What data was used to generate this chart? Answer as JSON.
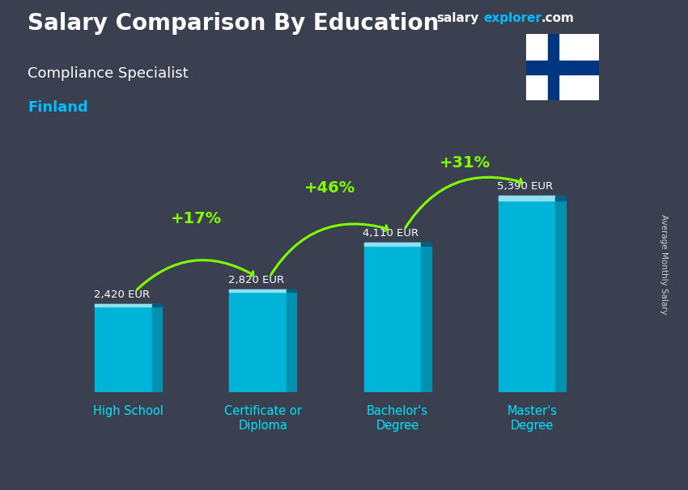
{
  "title": "Salary Comparison By Education",
  "subtitle": "Compliance Specialist",
  "country": "Finland",
  "ylabel": "Average Monthly Salary",
  "categories": [
    "High School",
    "Certificate or\nDiploma",
    "Bachelor's\nDegree",
    "Master's\nDegree"
  ],
  "values": [
    2420,
    2820,
    4110,
    5390
  ],
  "value_labels": [
    "2,420 EUR",
    "2,820 EUR",
    "4,110 EUR",
    "5,390 EUR"
  ],
  "pct_labels": [
    "+17%",
    "+46%",
    "+31%"
  ],
  "bar_color_main": "#00B4D8",
  "bar_color_right": "#0090B0",
  "bar_color_top": "#90E0EF",
  "bg_color": "#3a4050",
  "title_color": "#FFFFFF",
  "subtitle_color": "#FFFFFF",
  "country_color": "#00BFFF",
  "value_label_color": "#FFFFFF",
  "pct_color": "#7FFF00",
  "arrow_color": "#7FFF00",
  "tick_color": "#00E5FF",
  "brand_salary_color": "#FFFFFF",
  "brand_explorer_color": "#00BFFF",
  "brand_com_color": "#FFFFFF",
  "flag_bg": "#FFFFFF",
  "flag_cross": "#003580",
  "ylim": [
    0,
    7000
  ],
  "bar_width": 0.5
}
